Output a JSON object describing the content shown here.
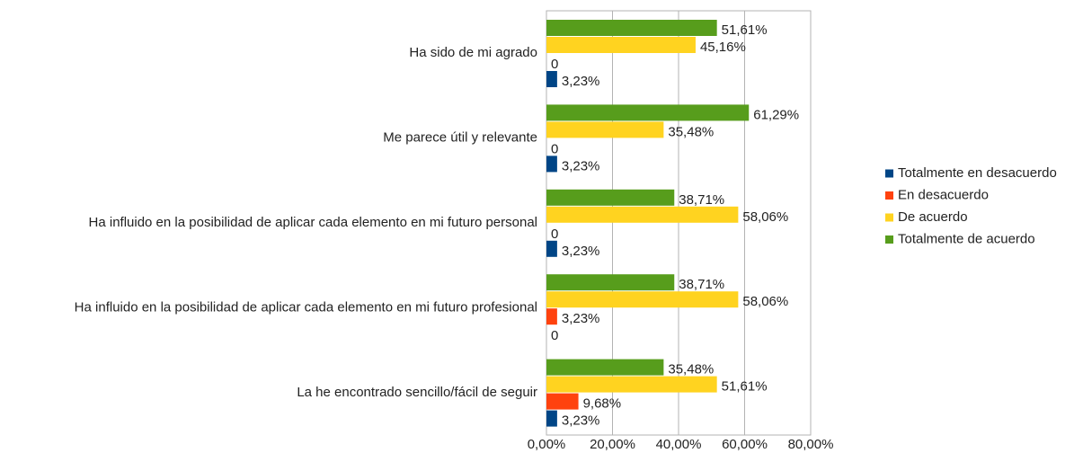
{
  "chart_data": {
    "type": "hbar",
    "categories": [
      "Ha sido de mi agrado",
      "Me parece útil y relevante",
      "Ha influido en la posibilidad de aplicar cada elemento en mi futuro personal",
      "Ha influido en la posibilidad de aplicar cada elemento en mi futuro profesional",
      "La he encontrado sencillo/fácil de seguir"
    ],
    "series": [
      {
        "name": "Totalmente en desacuerdo",
        "color": "#004586",
        "values": [
          3.23,
          3.23,
          3.23,
          0,
          3.23
        ],
        "value_labels": [
          "3,23%",
          "3,23%",
          "3,23%",
          "0",
          "3,23%"
        ]
      },
      {
        "name": "En desacuerdo",
        "color": "#ff420e",
        "values": [
          0,
          0,
          0,
          3.23,
          9.68
        ],
        "value_labels": [
          "0",
          "0",
          "0",
          "3,23%",
          "9,68%"
        ]
      },
      {
        "name": "De acuerdo",
        "color": "#ffd320",
        "values": [
          45.16,
          35.48,
          58.06,
          58.06,
          51.61
        ],
        "value_labels": [
          "45,16%",
          "35,48%",
          "58,06%",
          "58,06%",
          "51,61%"
        ]
      },
      {
        "name": "Totalmente de acuerdo",
        "color": "#579d1c",
        "values": [
          51.61,
          61.29,
          38.71,
          38.71,
          35.48
        ],
        "value_labels": [
          "51,61%",
          "61,29%",
          "38,71%",
          "38,71%",
          "35,48%"
        ]
      }
    ],
    "xlim": [
      0,
      80
    ],
    "xticks": [
      {
        "value": 0,
        "label": "0,00%"
      },
      {
        "value": 20,
        "label": "20,00%"
      },
      {
        "value": 40,
        "label": "40,00%"
      },
      {
        "value": 60,
        "label": "60,00%"
      },
      {
        "value": 80,
        "label": "80,00%"
      }
    ],
    "grid": true,
    "legend": "right"
  }
}
